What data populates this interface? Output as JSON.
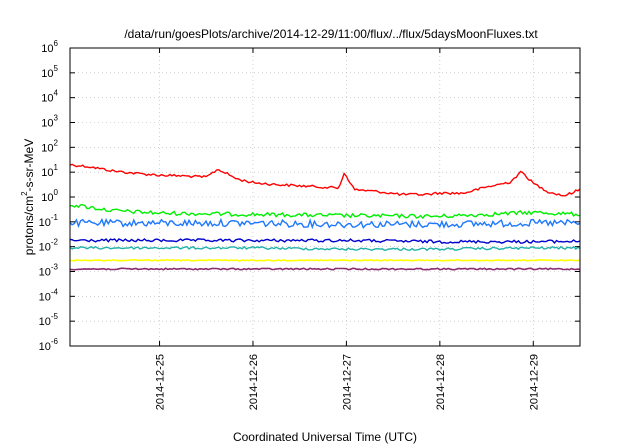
{
  "chart_data": {
    "type": "line",
    "title": "/data/run/goesPlots/archive/2014-12-29/11:00/flux/../flux/5daysMoonFluxes.txt",
    "xlabel": "Coordinated Universal Time (UTC)",
    "ylabel": "protons/cm2-s-sr-MeV",
    "ylabel_parts": [
      "protons/cm",
      "2",
      "-s-sr-MeV"
    ],
    "yscale": "log",
    "ylim_exponents": [
      -6,
      6
    ],
    "yticks": [
      {
        "base": "10",
        "exp": "-6"
      },
      {
        "base": "10",
        "exp": "-5"
      },
      {
        "base": "10",
        "exp": "-4"
      },
      {
        "base": "10",
        "exp": "-3"
      },
      {
        "base": "10",
        "exp": "-2"
      },
      {
        "base": "10",
        "exp": "-1"
      },
      {
        "base": "10",
        "exp": "0"
      },
      {
        "base": "10",
        "exp": "1"
      },
      {
        "base": "10",
        "exp": "2"
      },
      {
        "base": "10",
        "exp": "3"
      },
      {
        "base": "10",
        "exp": "4"
      },
      {
        "base": "10",
        "exp": "5"
      },
      {
        "base": "10",
        "exp": "6"
      }
    ],
    "xlim": [
      "2014-12-24T01:00",
      "2014-12-29T12:00"
    ],
    "xticks": [
      "2014-12-25",
      "2014-12-26",
      "2014-12-27",
      "2014-12-28",
      "2014-12-29"
    ],
    "grid": true,
    "series": [
      {
        "color": "#ff0000",
        "log10_x": [
          [
            "2014-12-24T01:00",
            1.3
          ],
          [
            "2014-12-24T06:00",
            1.22
          ],
          [
            "2014-12-24T12:00",
            1.05
          ],
          [
            "2014-12-24T18:00",
            0.95
          ],
          [
            "2014-12-25T00:00",
            0.88
          ],
          [
            "2014-12-25T06:00",
            0.85
          ],
          [
            "2014-12-25T12:00",
            0.8
          ],
          [
            "2014-12-25T15:00",
            1.12
          ],
          [
            "2014-12-25T20:00",
            0.72
          ],
          [
            "2014-12-26T00:00",
            0.58
          ],
          [
            "2014-12-26T06:00",
            0.5
          ],
          [
            "2014-12-26T12:00",
            0.45
          ],
          [
            "2014-12-26T18:00",
            0.4
          ],
          [
            "2014-12-26T22:00",
            0.36
          ],
          [
            "2014-12-26T23:30",
            0.98
          ],
          [
            "2014-12-27T02:00",
            0.3
          ],
          [
            "2014-12-27T08:00",
            0.22
          ],
          [
            "2014-12-27T14:00",
            0.1
          ],
          [
            "2014-12-27T20:00",
            0.1
          ],
          [
            "2014-12-28T00:00",
            0.16
          ],
          [
            "2014-12-28T06:00",
            0.15
          ],
          [
            "2014-12-28T12:00",
            0.4
          ],
          [
            "2014-12-28T18:00",
            0.6
          ],
          [
            "2014-12-28T21:00",
            1.02
          ],
          [
            "2014-12-29T00:00",
            0.55
          ],
          [
            "2014-12-29T04:00",
            0.2
          ],
          [
            "2014-12-29T08:00",
            0.05
          ],
          [
            "2014-12-29T12:00",
            0.3
          ]
        ]
      },
      {
        "color": "#00ee00",
        "log10_x": [
          [
            "2014-12-24T01:00",
            -0.3
          ],
          [
            "2014-12-24T12:00",
            -0.55
          ],
          [
            "2014-12-25T00:00",
            -0.65
          ],
          [
            "2014-12-26T00:00",
            -0.7
          ],
          [
            "2014-12-27T00:00",
            -0.75
          ],
          [
            "2014-12-28T00:00",
            -0.78
          ],
          [
            "2014-12-29T00:00",
            -0.62
          ],
          [
            "2014-12-29T12:00",
            -0.7
          ]
        ]
      },
      {
        "color": "#1e78ff",
        "log10_x": [
          [
            "2014-12-24T01:00",
            -1.05
          ],
          [
            "2014-12-24T12:00",
            -1.05
          ],
          [
            "2014-12-25T00:00",
            -1.05
          ],
          [
            "2014-12-26T00:00",
            -1.05
          ],
          [
            "2014-12-27T00:00",
            -1.1
          ],
          [
            "2014-12-28T00:00",
            -1.1
          ],
          [
            "2014-12-29T00:00",
            -1.05
          ],
          [
            "2014-12-29T12:00",
            -1.05
          ]
        ]
      },
      {
        "color": "#0000cc",
        "log10_x": [
          [
            "2014-12-24T01:00",
            -1.75
          ],
          [
            "2014-12-25T00:00",
            -1.75
          ],
          [
            "2014-12-26T00:00",
            -1.75
          ],
          [
            "2014-12-27T00:00",
            -1.75
          ],
          [
            "2014-12-28T00:00",
            -1.8
          ],
          [
            "2014-12-29T00:00",
            -1.8
          ],
          [
            "2014-12-29T12:00",
            -1.78
          ]
        ]
      },
      {
        "color": "#20b2aa",
        "log10_x": [
          [
            "2014-12-24T01:00",
            -2.05
          ],
          [
            "2014-12-25T00:00",
            -2.05
          ],
          [
            "2014-12-26T00:00",
            -2.05
          ],
          [
            "2014-12-27T00:00",
            -2.1
          ],
          [
            "2014-12-28T00:00",
            -2.1
          ],
          [
            "2014-12-29T00:00",
            -2.05
          ],
          [
            "2014-12-29T12:00",
            -2.05
          ]
        ]
      },
      {
        "color": "#ffff00",
        "log10_x": [
          [
            "2014-12-24T01:00",
            -2.55
          ],
          [
            "2014-12-29T12:00",
            -2.55
          ]
        ]
      },
      {
        "color": "#8b2d6e",
        "log10_x": [
          [
            "2014-12-24T01:00",
            -2.9
          ],
          [
            "2014-12-29T12:00",
            -2.9
          ]
        ]
      }
    ]
  }
}
